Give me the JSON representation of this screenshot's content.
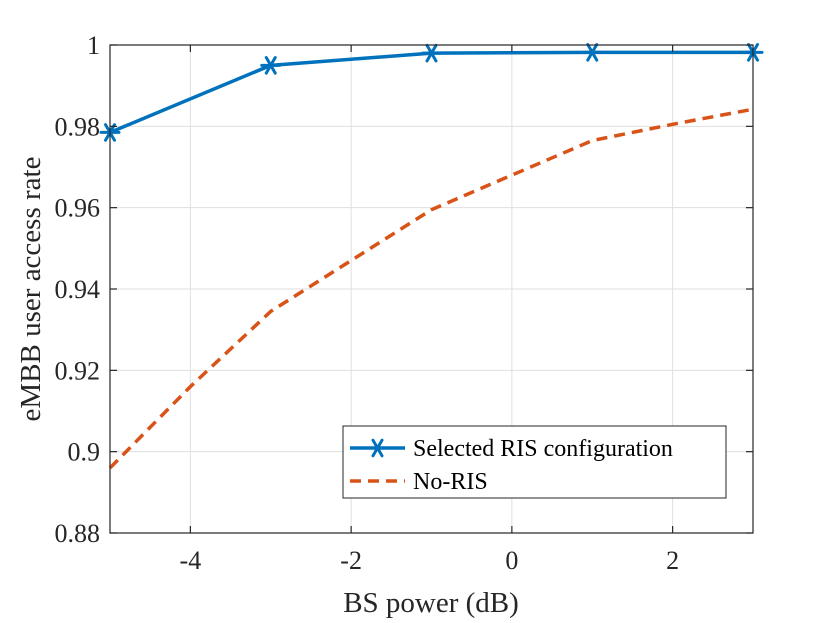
{
  "chart_data": {
    "type": "line",
    "title": "",
    "xlabel": "BS power (dB)",
    "ylabel": "eMBB user access rate",
    "xlim": [
      -5,
      3
    ],
    "ylim": [
      0.88,
      1.0
    ],
    "grid": true,
    "legend_position": "bottom-right",
    "x_ticks": [
      -4,
      -2,
      0,
      2
    ],
    "x_tick_labels": [
      "-4",
      "-2",
      "0",
      "2"
    ],
    "y_ticks": [
      0.88,
      0.9,
      0.92,
      0.94,
      0.96,
      0.98,
      1.0
    ],
    "y_tick_labels": [
      "0.88",
      "0.9",
      "0.92",
      "0.94",
      "0.96",
      "0.98",
      "1"
    ],
    "series": [
      {
        "name": "Selected RIS configuration",
        "color": "#0072bd",
        "line_style": "solid",
        "marker": "asterisk",
        "x": [
          -5,
          -3,
          -1,
          1,
          3
        ],
        "y": [
          0.9785,
          0.995,
          0.998,
          0.9982,
          0.9982
        ]
      },
      {
        "name": "No-RIS",
        "color": "#d95319",
        "line_style": "dashed",
        "marker": "none",
        "x": [
          -5,
          -4,
          -3,
          -2,
          -1,
          0,
          1,
          2,
          3
        ],
        "y": [
          0.896,
          0.916,
          0.9345,
          0.947,
          0.9595,
          0.968,
          0.9765,
          0.9805,
          0.9842
        ]
      }
    ]
  }
}
